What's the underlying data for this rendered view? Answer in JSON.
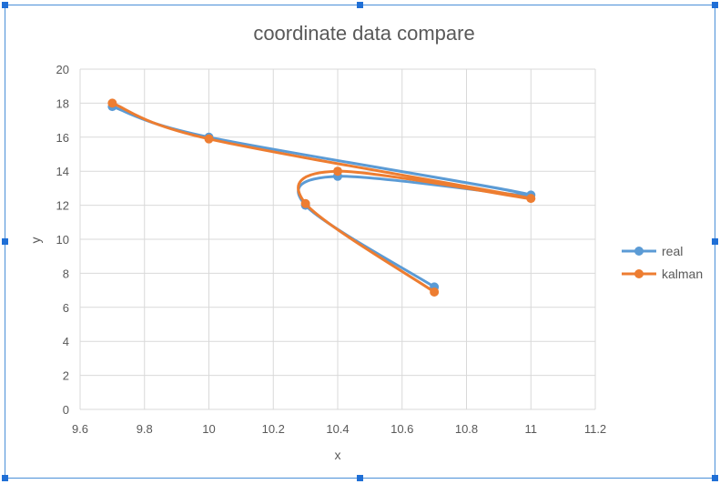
{
  "chart_data": {
    "type": "scatter",
    "title": "coordinate data compare",
    "xlabel": "x",
    "ylabel": "y",
    "xlim": [
      9.6,
      11.2
    ],
    "ylim": [
      0,
      20
    ],
    "xticks": [
      "9.6",
      "9.8",
      "10",
      "10.2",
      "10.4",
      "10.6",
      "10.8",
      "11",
      "11.2"
    ],
    "yticks": [
      "0",
      "2",
      "4",
      "6",
      "8",
      "10",
      "12",
      "14",
      "16",
      "18",
      "20"
    ],
    "grid": true,
    "legend_position": "right",
    "smooth_lines": true,
    "series": [
      {
        "name": "real",
        "color": "#5b9bd5",
        "points": [
          {
            "x": 9.7,
            "y": 17.8
          },
          {
            "x": 10.0,
            "y": 16.0
          },
          {
            "x": 11.0,
            "y": 12.6
          },
          {
            "x": 10.4,
            "y": 13.7
          },
          {
            "x": 10.3,
            "y": 12.0
          },
          {
            "x": 10.7,
            "y": 7.2
          }
        ]
      },
      {
        "name": "kalman",
        "color": "#ed7d31",
        "points": [
          {
            "x": 9.7,
            "y": 18.0
          },
          {
            "x": 10.0,
            "y": 15.9
          },
          {
            "x": 11.0,
            "y": 12.4
          },
          {
            "x": 10.4,
            "y": 14.0
          },
          {
            "x": 10.3,
            "y": 12.1
          },
          {
            "x": 10.7,
            "y": 6.9
          }
        ]
      }
    ]
  }
}
